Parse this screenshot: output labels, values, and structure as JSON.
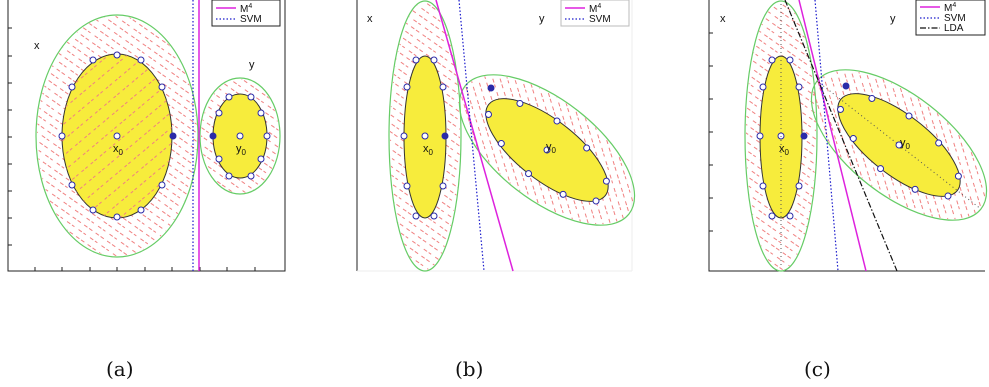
{
  "panels": [
    {
      "caption": "(a)",
      "label_x": "x",
      "label_y": "y",
      "center_x_label": "x",
      "center_x_sub": "0",
      "center_y_label": "y",
      "center_y_sub": "0",
      "legend": [
        {
          "label": "M",
          "sup": "4",
          "color": "#dd22dd",
          "style": "solid"
        },
        {
          "label": "SVM",
          "color": "#1a1acc",
          "style": "dotted"
        }
      ]
    },
    {
      "caption": "(b)",
      "label_x": "x",
      "label_y": "y",
      "center_x_label": "x",
      "center_x_sub": "0",
      "center_y_label": "y",
      "center_y_sub": "0",
      "legend": [
        {
          "label": "M",
          "sup": "4",
          "color": "#dd22dd",
          "style": "solid"
        },
        {
          "label": "SVM",
          "color": "#1a1acc",
          "style": "dotted"
        }
      ]
    },
    {
      "caption": "(c)",
      "label_x": "x",
      "label_y": "y",
      "center_x_label": "x",
      "center_x_sub": "0",
      "center_y_label": "y",
      "center_y_sub": "0",
      "legend": [
        {
          "label": "M",
          "sup": "4",
          "color": "#dd22dd",
          "style": "solid"
        },
        {
          "label": "SVM",
          "color": "#1a1acc",
          "style": "dotted"
        },
        {
          "label": "LDA",
          "color": "#111111",
          "style": "dashdot"
        }
      ]
    }
  ],
  "colors": {
    "ellipse_fill": "#f7ec3c",
    "ellipse_outer": "#66cc66",
    "dashed_red": "#f08080",
    "marker_blue": "#2a2aa8",
    "m4": "#dd22dd",
    "svm": "#1a1acc",
    "lda": "#111111"
  }
}
